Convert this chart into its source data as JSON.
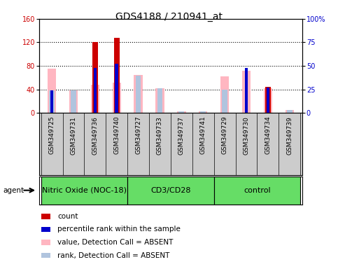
{
  "title": "GDS4188 / 210941_at",
  "samples": [
    "GSM349725",
    "GSM349731",
    "GSM349736",
    "GSM349740",
    "GSM349727",
    "GSM349733",
    "GSM349737",
    "GSM349741",
    "GSM349729",
    "GSM349730",
    "GSM349734",
    "GSM349739"
  ],
  "groups": [
    {
      "label": "Nitric Oxide (NOC-18)",
      "start": 0,
      "end": 4
    },
    {
      "label": "CD3/CD28",
      "start": 4,
      "end": 8
    },
    {
      "label": "control",
      "start": 8,
      "end": 12
    }
  ],
  "count_values": [
    0,
    0,
    121,
    128,
    0,
    0,
    0,
    0,
    0,
    0,
    44,
    0
  ],
  "percentile_rank": [
    24,
    0,
    48,
    52,
    0,
    0,
    0,
    0,
    0,
    48,
    27,
    0
  ],
  "absent_value": [
    75,
    38,
    48,
    52,
    65,
    42,
    3,
    3,
    62,
    72,
    42,
    5
  ],
  "absent_rank": [
    24,
    24,
    0,
    0,
    40,
    26,
    2,
    2,
    25,
    0,
    0,
    3
  ],
  "ylim_left": [
    0,
    160
  ],
  "ylim_right": [
    0,
    100
  ],
  "left_ticks": [
    0,
    40,
    80,
    120,
    160
  ],
  "right_ticks": [
    0,
    25,
    50,
    75,
    100
  ],
  "right_tick_labels": [
    "0",
    "25",
    "50",
    "75",
    "100%"
  ],
  "count_color": "#CC0000",
  "percentile_color": "#0000CC",
  "absent_value_color": "#FFB6C1",
  "absent_rank_color": "#B0C4DE",
  "group_color": "#66DD66",
  "sample_bg_color": "#CCCCCC",
  "title_fontsize": 10,
  "tick_fontsize": 7,
  "label_fontsize": 6.5,
  "legend_fontsize": 7.5,
  "group_fontsize": 8
}
